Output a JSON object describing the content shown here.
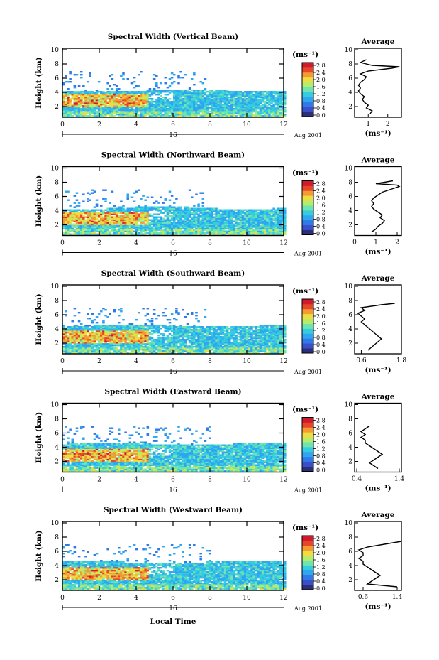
{
  "figure": {
    "x_label": "Local Time",
    "date_label": "16",
    "month_label": "Aug 2001",
    "colorbar_unit_label": "(ms⁻¹)",
    "profile_unit_label": "(ms⁻¹)",
    "profile_title": "Average",
    "y_label": "Height (km)"
  },
  "colors": {
    "colormap": [
      "#2b2f7a",
      "#3a4fc9",
      "#2f79e8",
      "#2fa6ef",
      "#34cde0",
      "#6fe3b0",
      "#b5ec6a",
      "#eedc43",
      "#f59a30",
      "#e8462a",
      "#d11a2a"
    ]
  },
  "chart_data": [
    {
      "type": "heatmap",
      "title": "Spectral Width (Vertical Beam)",
      "x_ticks": [
        0,
        2,
        4,
        6,
        8,
        10,
        12
      ],
      "xlim": [
        0,
        12
      ],
      "y_ticks": [
        2,
        4,
        6,
        8,
        10
      ],
      "ylim": [
        0.5,
        10.2
      ],
      "colorbar": {
        "ticks": [
          "2.8",
          "2.4",
          "2.0",
          "1.6",
          "1.2",
          "0.8",
          "0.4",
          "0.0"
        ],
        "range": [
          0,
          3.0
        ]
      },
      "data_top_km": 4.2,
      "profile": {
        "xlim": [
          0.3,
          2.7
        ],
        "x_tick_labels": [
          "1",
          "2"
        ],
        "x_ticks": [
          1,
          2
        ],
        "y_ticks": [
          2,
          4,
          6,
          8,
          10
        ],
        "heights": [
          1.0,
          1.4,
          1.8,
          2.2,
          2.6,
          3.0,
          3.4,
          3.8,
          4.2,
          4.6,
          5.0,
          5.4,
          5.8,
          6.2,
          6.6,
          7.0,
          7.4,
          7.6,
          7.8,
          8.2,
          8.6
        ],
        "values": [
          1.1,
          1.2,
          0.9,
          1.0,
          0.8,
          0.7,
          0.8,
          0.6,
          0.5,
          0.6,
          0.5,
          0.6,
          0.8,
          0.9,
          0.6,
          1.0,
          2.2,
          2.6,
          1.2,
          0.6,
          0.9
        ]
      }
    },
    {
      "type": "heatmap",
      "title": "Spectral Width (Northward Beam)",
      "x_ticks": [
        0,
        2,
        4,
        6,
        8,
        10,
        12
      ],
      "xlim": [
        0,
        12
      ],
      "y_ticks": [
        2,
        4,
        6,
        8,
        10
      ],
      "ylim": [
        0.5,
        10.2
      ],
      "colorbar": {
        "ticks": [
          "2.8",
          "2.4",
          "2.0",
          "1.6",
          "1.2",
          "0.8",
          "0.4",
          "0.0"
        ],
        "range": [
          0,
          3.0
        ]
      },
      "data_top_km": 4.3,
      "profile": {
        "xlim": [
          0,
          2.2
        ],
        "x_tick_labels": [
          "0",
          "1",
          "2"
        ],
        "x_ticks": [
          0,
          1,
          2
        ],
        "y_ticks": [
          2,
          4,
          6,
          8,
          10
        ],
        "heights": [
          1.0,
          1.4,
          1.8,
          2.2,
          2.6,
          3.0,
          3.4,
          3.8,
          4.2,
          4.6,
          5.0,
          5.4,
          5.8,
          6.2,
          6.6,
          7.0,
          7.4,
          7.6,
          7.8,
          8.2
        ],
        "values": [
          0.8,
          1.0,
          1.1,
          1.3,
          1.4,
          1.2,
          1.3,
          1.1,
          0.9,
          0.8,
          0.9,
          0.8,
          0.9,
          1.1,
          1.3,
          1.7,
          2.1,
          2.0,
          1.0,
          1.8
        ]
      }
    },
    {
      "type": "heatmap",
      "title": "Spectral Width (Southward Beam)",
      "x_ticks": [
        0,
        2,
        4,
        6,
        8,
        10,
        12
      ],
      "xlim": [
        0,
        12
      ],
      "y_ticks": [
        2,
        4,
        6,
        8,
        10
      ],
      "ylim": [
        0.5,
        10.2
      ],
      "colorbar": {
        "ticks": [
          "2.8",
          "2.4",
          "2.0",
          "1.6",
          "1.2",
          "0.8",
          "0.4",
          "0.0"
        ],
        "range": [
          0,
          3.0
        ]
      },
      "data_top_km": 4.4,
      "profile": {
        "xlim": [
          0.4,
          1.8
        ],
        "x_tick_labels": [
          "0.6",
          "1.8"
        ],
        "x_ticks": [
          0.6,
          1.8
        ],
        "y_ticks": [
          2,
          4,
          6,
          8,
          10
        ],
        "heights": [
          1.0,
          1.4,
          1.8,
          2.2,
          2.6,
          3.0,
          3.4,
          3.8,
          4.2,
          4.6,
          5.0,
          5.4,
          5.8,
          6.2,
          6.6,
          7.0,
          7.4,
          7.6
        ],
        "values": [
          0.8,
          0.9,
          1.0,
          1.1,
          1.2,
          1.1,
          1.0,
          0.9,
          0.8,
          0.7,
          0.6,
          0.7,
          0.6,
          0.5,
          0.7,
          0.6,
          1.2,
          1.6
        ]
      }
    },
    {
      "type": "heatmap",
      "title": "Spectral Width (Eastward Beam)",
      "x_ticks": [
        0,
        2,
        4,
        6,
        8,
        10,
        12
      ],
      "xlim": [
        0,
        12
      ],
      "y_ticks": [
        2,
        4,
        6,
        8,
        10
      ],
      "ylim": [
        0.5,
        10.2
      ],
      "colorbar": {
        "ticks": [
          "2.8",
          "2.4",
          "2.0",
          "1.6",
          "1.2",
          "0.8",
          "0.4",
          "0.0"
        ],
        "range": [
          0,
          3.0
        ]
      },
      "data_top_km": 4.4,
      "profile": {
        "xlim": [
          0.35,
          1.45
        ],
        "x_tick_labels": [
          "0.4",
          "1.4"
        ],
        "x_ticks": [
          0.4,
          1.4
        ],
        "y_ticks": [
          2,
          4,
          6,
          8,
          10
        ],
        "heights": [
          1.0,
          1.4,
          1.8,
          2.2,
          2.6,
          3.0,
          3.4,
          3.8,
          4.2,
          4.6,
          5.0,
          5.4,
          5.8,
          6.2,
          6.6,
          7.0
        ],
        "values": [
          0.9,
          0.8,
          0.7,
          0.8,
          0.9,
          1.0,
          0.9,
          0.8,
          0.7,
          0.6,
          0.6,
          0.5,
          0.6,
          0.5,
          0.6,
          0.7
        ]
      }
    },
    {
      "type": "heatmap",
      "title": "Spectral Width (Westward Beam)",
      "x_ticks": [
        0,
        2,
        4,
        6,
        8,
        10,
        12
      ],
      "xlim": [
        0,
        12
      ],
      "y_ticks": [
        2,
        4,
        6,
        8,
        10
      ],
      "ylim": [
        0.5,
        10.2
      ],
      "colorbar": {
        "ticks": [
          "2.8",
          "2.4",
          "2.0",
          "1.6",
          "1.2",
          "0.8",
          "0.4",
          "0.0"
        ],
        "range": [
          0,
          3.0
        ]
      },
      "data_top_km": 4.4,
      "profile": {
        "xlim": [
          0.4,
          1.5
        ],
        "x_tick_labels": [
          "0.6",
          "1.4"
        ],
        "x_ticks": [
          0.6,
          1.4
        ],
        "y_ticks": [
          2,
          4,
          6,
          8,
          10
        ],
        "heights": [
          1.0,
          1.4,
          1.8,
          2.2,
          2.6,
          3.0,
          3.4,
          3.8,
          4.2,
          4.6,
          5.0,
          5.4,
          5.8,
          6.2,
          6.6,
          7.0,
          7.4
        ],
        "values": [
          1.4,
          0.7,
          0.8,
          0.9,
          1.0,
          0.9,
          0.8,
          0.7,
          0.6,
          0.6,
          0.5,
          0.6,
          0.6,
          0.5,
          0.7,
          1.1,
          1.5
        ]
      }
    }
  ]
}
